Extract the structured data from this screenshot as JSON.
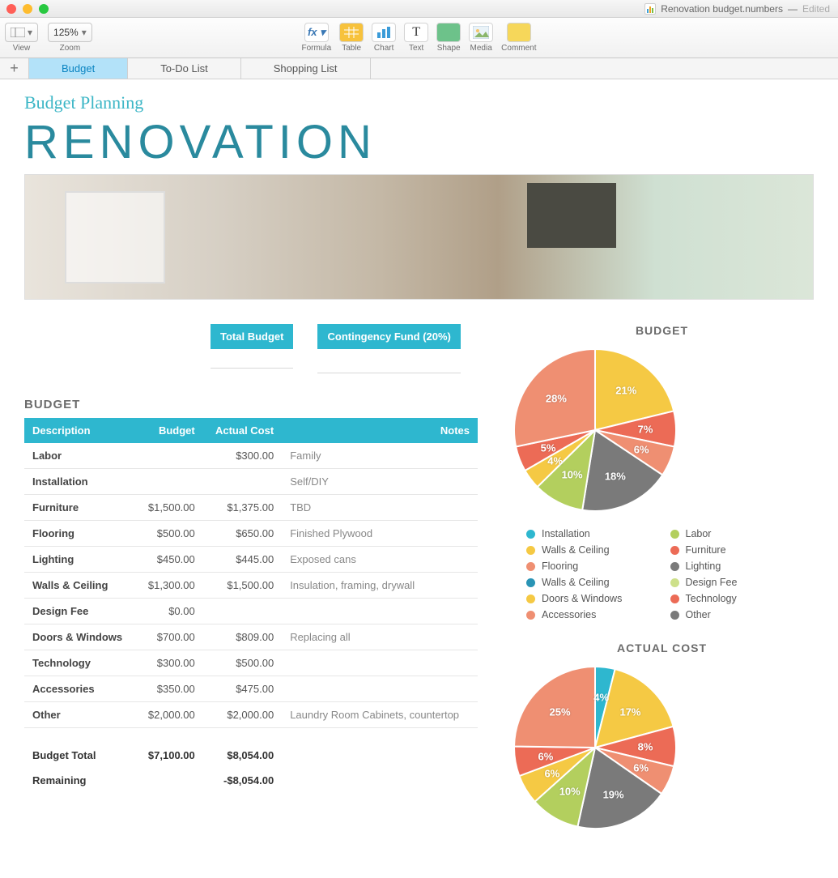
{
  "window": {
    "doc_name": "Renovation budget.numbers",
    "edited_label": "Edited"
  },
  "toolbar": {
    "view_label": "View",
    "zoom_label": "Zoom",
    "zoom_value": "125%",
    "items": [
      {
        "label": "Formula",
        "icon": "fx",
        "bg": "#ffffff",
        "fg": "#3a78b5"
      },
      {
        "label": "Table",
        "icon": "table",
        "bg": "#f7c23c",
        "fg": "#fff"
      },
      {
        "label": "Chart",
        "icon": "chart",
        "bg": "#ffffff",
        "fg": "#3a78b5"
      },
      {
        "label": "Text",
        "icon": "T",
        "bg": "#ffffff",
        "fg": "#333"
      },
      {
        "label": "Shape",
        "icon": "shape",
        "bg": "#6dc28a",
        "fg": "#fff"
      },
      {
        "label": "Media",
        "icon": "media",
        "bg": "#ffffff",
        "fg": "#5aa0c8"
      },
      {
        "label": "Comment",
        "icon": "comment",
        "bg": "#f6d75a",
        "fg": "#fff"
      }
    ]
  },
  "sheets": {
    "tabs": [
      "Budget",
      "To-Do List",
      "Shopping List"
    ],
    "active": 0
  },
  "header": {
    "subtitle": "Budget Planning",
    "title": "RENOVATION"
  },
  "chips": {
    "total_budget": "Total Budget",
    "contingency": "Contingency Fund (20%)"
  },
  "budget_table": {
    "title": "BUDGET",
    "columns": [
      "Description",
      "Budget",
      "Actual Cost",
      "Notes"
    ],
    "rows": [
      {
        "desc": "Labor",
        "budget": "",
        "actual": "$300.00",
        "notes": "Family"
      },
      {
        "desc": "Installation",
        "budget": "",
        "actual": "",
        "notes": "Self/DIY"
      },
      {
        "desc": "Furniture",
        "budget": "$1,500.00",
        "actual": "$1,375.00",
        "notes": "TBD"
      },
      {
        "desc": "Flooring",
        "budget": "$500.00",
        "actual": "$650.00",
        "notes": "Finished Plywood"
      },
      {
        "desc": "Lighting",
        "budget": "$450.00",
        "actual": "$445.00",
        "notes": "Exposed cans"
      },
      {
        "desc": "Walls & Ceiling",
        "budget": "$1,300.00",
        "actual": "$1,500.00",
        "notes": "Insulation, framing, drywall"
      },
      {
        "desc": "Design Fee",
        "budget": "$0.00",
        "actual": "",
        "notes": ""
      },
      {
        "desc": "Doors & Windows",
        "budget": "$700.00",
        "actual": "$809.00",
        "notes": "Replacing all"
      },
      {
        "desc": "Technology",
        "budget": "$300.00",
        "actual": "$500.00",
        "notes": ""
      },
      {
        "desc": "Accessories",
        "budget": "$350.00",
        "actual": "$475.00",
        "notes": ""
      },
      {
        "desc": "Other",
        "budget": "$2,000.00",
        "actual": "$2,000.00",
        "notes": "Laundry Room Cabinets, countertop"
      }
    ],
    "totals": [
      {
        "desc": "Budget Total",
        "budget": "$7,100.00",
        "actual": "$8,054.00"
      },
      {
        "desc": "Remaining",
        "budget": "",
        "actual": "-$8,054.00"
      }
    ]
  },
  "charts": {
    "colors": {
      "Installation": "#2eb7cf",
      "Labor": "#b3cf5e",
      "Walls & Ceiling": "#f5c944",
      "Furniture": "#ec6b56",
      "Flooring": "#ef8f72",
      "Lighting": "#7a7a7a",
      "Walls & Ceiling2": "#2a94b5",
      "Design Fee": "#cde08a",
      "Doors & Windows": "#f5c944",
      "Technology": "#ec6b56",
      "Accessories": "#ef8f72",
      "Other": "#7a7a7a"
    },
    "legend_left": [
      "Installation",
      "Walls & Ceiling",
      "Flooring",
      "Walls & Ceiling",
      "Doors & Windows",
      "Accessories"
    ],
    "legend_right": [
      "Labor",
      "Furniture",
      "Lighting",
      "Design Fee",
      "Technology",
      "Other"
    ],
    "legend_colors_left": [
      "#2eb7cf",
      "#f5c944",
      "#ef8f72",
      "#2a94b5",
      "#f5c944",
      "#ef8f72"
    ],
    "legend_colors_right": [
      "#b3cf5e",
      "#ec6b56",
      "#7a7a7a",
      "#cde08a",
      "#ec6b56",
      "#7a7a7a"
    ],
    "budget": {
      "title": "BUDGET",
      "radius": 100,
      "slices": [
        {
          "label": "21%",
          "value": 21,
          "color": "#f5c944"
        },
        {
          "label": "7%",
          "value": 7,
          "color": "#ec6b56"
        },
        {
          "label": "6%",
          "value": 6,
          "color": "#ef8f72"
        },
        {
          "label": "18%",
          "value": 18,
          "color": "#7a7a7a"
        },
        {
          "label": "10%",
          "value": 10,
          "color": "#b3cf5e"
        },
        {
          "label": "4%",
          "value": 4,
          "color": "#f5c944"
        },
        {
          "label": "5%",
          "value": 5,
          "color": "#ec6b56"
        },
        {
          "label": "28%",
          "value": 28,
          "color": "#ef8f72"
        }
      ]
    },
    "actual": {
      "title": "ACTUAL COST",
      "radius": 100,
      "slices": [
        {
          "label": "4%",
          "value": 4,
          "color": "#2eb7cf"
        },
        {
          "label": "17%",
          "value": 17,
          "color": "#f5c944"
        },
        {
          "label": "8%",
          "value": 8,
          "color": "#ec6b56"
        },
        {
          "label": "6%",
          "value": 6,
          "color": "#ef8f72"
        },
        {
          "label": "19%",
          "value": 19,
          "color": "#7a7a7a"
        },
        {
          "label": "10%",
          "value": 10,
          "color": "#b3cf5e"
        },
        {
          "label": "6%",
          "value": 6,
          "color": "#f5c944"
        },
        {
          "label": "6%",
          "value": 6,
          "color": "#ec6b56"
        },
        {
          "label": "25%",
          "value": 25,
          "color": "#ef8f72"
        }
      ]
    }
  }
}
